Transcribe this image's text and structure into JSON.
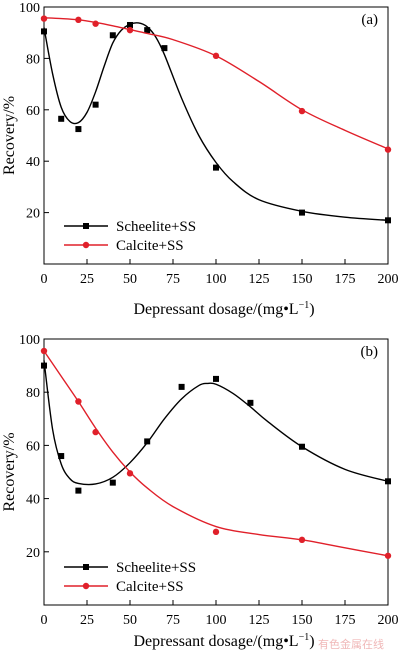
{
  "figure": {
    "watermark": "有色金属在线"
  },
  "chart_data": [
    {
      "type": "scatter",
      "panel_label": "(a)",
      "xlabel": "Depressant dosage/(mg•L",
      "xlabel_sup": "−1",
      "xlabel_tail": ")",
      "ylabel": "Recovery/%",
      "xlim": [
        0,
        200
      ],
      "ylim": [
        0,
        100
      ],
      "xticks": [
        0,
        25,
        50,
        75,
        100,
        125,
        150,
        175,
        200
      ],
      "yticks": [
        20,
        40,
        60,
        80,
        100
      ],
      "grid": false,
      "legend_position": "bottom-left",
      "series": [
        {
          "name": "Scheelite+SS",
          "color": "#000000",
          "marker": "square",
          "x": [
            0,
            10,
            20,
            30,
            40,
            50,
            60,
            70,
            100,
            150,
            200
          ],
          "y": [
            90.5,
            56.5,
            52.5,
            62,
            89,
            93,
            91,
            84,
            37.5,
            20,
            17
          ],
          "curve": [
            [
              0,
              92
            ],
            [
              5,
              74
            ],
            [
              10,
              61
            ],
            [
              15,
              55.5
            ],
            [
              20,
              55
            ],
            [
              25,
              59
            ],
            [
              30,
              67
            ],
            [
              35,
              77
            ],
            [
              40,
              86
            ],
            [
              45,
              91
            ],
            [
              50,
              93.3
            ],
            [
              55,
              93.8
            ],
            [
              60,
              92.3
            ],
            [
              65,
              88.3
            ],
            [
              70,
              81.5
            ],
            [
              80,
              64.5
            ],
            [
              90,
              50
            ],
            [
              100,
              39.5
            ],
            [
              110,
              32
            ],
            [
              125,
              25
            ],
            [
              150,
              20.5
            ],
            [
              175,
              18.2
            ],
            [
              200,
              17
            ]
          ]
        },
        {
          "name": "Calcite+SS",
          "color": "#e0202a",
          "marker": "circle",
          "x": [
            0,
            20,
            30,
            50,
            100,
            150,
            200
          ],
          "y": [
            95.5,
            95,
            93.5,
            91,
            81,
            59.5,
            44.5
          ],
          "curve": [
            [
              0,
              95.8
            ],
            [
              10,
              95.5
            ],
            [
              20,
              95
            ],
            [
              30,
              94
            ],
            [
              40,
              92.7
            ],
            [
              50,
              91.2
            ],
            [
              60,
              89.7
            ],
            [
              75,
              87.3
            ],
            [
              100,
              81
            ],
            [
              125,
              71
            ],
            [
              150,
              60
            ],
            [
              175,
              52
            ],
            [
              200,
              44.8
            ]
          ]
        }
      ]
    },
    {
      "type": "scatter",
      "panel_label": "(b)",
      "xlabel": "Depressant dosage/(mg•L",
      "xlabel_sup": "−1",
      "xlabel_tail": ")",
      "ylabel": "Recovery/%",
      "xlim": [
        0,
        200
      ],
      "ylim": [
        0,
        100
      ],
      "xticks": [
        0,
        25,
        50,
        75,
        100,
        125,
        150,
        175,
        200
      ],
      "yticks": [
        20,
        40,
        60,
        80,
        100
      ],
      "grid": false,
      "legend_position": "bottom-left",
      "series": [
        {
          "name": "Scheelite+SS",
          "color": "#000000",
          "marker": "square",
          "x": [
            0,
            10,
            20,
            40,
            60,
            80,
            100,
            120,
            150,
            200
          ],
          "y": [
            90,
            56,
            43,
            46,
            61.5,
            82,
            85,
            76,
            59.5,
            46.5
          ],
          "curve": [
            [
              0,
              92
            ],
            [
              5,
              66
            ],
            [
              10,
              53
            ],
            [
              15,
              47.5
            ],
            [
              20,
              45.7
            ],
            [
              30,
              45.5
            ],
            [
              40,
              48
            ],
            [
              50,
              53.5
            ],
            [
              60,
              61
            ],
            [
              70,
              70
            ],
            [
              80,
              77.5
            ],
            [
              90,
              82.5
            ],
            [
              95,
              83.3
            ],
            [
              100,
              83
            ],
            [
              110,
              79.5
            ],
            [
              120,
              74.5
            ],
            [
              130,
              69
            ],
            [
              150,
              59.5
            ],
            [
              175,
              51
            ],
            [
              200,
              46.5
            ]
          ]
        },
        {
          "name": "Calcite+SS",
          "color": "#e0202a",
          "marker": "circle",
          "x": [
            0,
            20,
            30,
            50,
            100,
            150,
            200
          ],
          "y": [
            95.5,
            76.5,
            65,
            49.5,
            27.5,
            24.5,
            18.5
          ],
          "curve": [
            [
              0,
              95.5
            ],
            [
              10,
              86
            ],
            [
              20,
              76.5
            ],
            [
              30,
              66.5
            ],
            [
              40,
              57.5
            ],
            [
              50,
              50
            ],
            [
              60,
              44
            ],
            [
              75,
              37
            ],
            [
              100,
              29.5
            ],
            [
              125,
              26.5
            ],
            [
              150,
              24.5
            ],
            [
              175,
              21.5
            ],
            [
              200,
              18.5
            ]
          ]
        }
      ]
    }
  ]
}
